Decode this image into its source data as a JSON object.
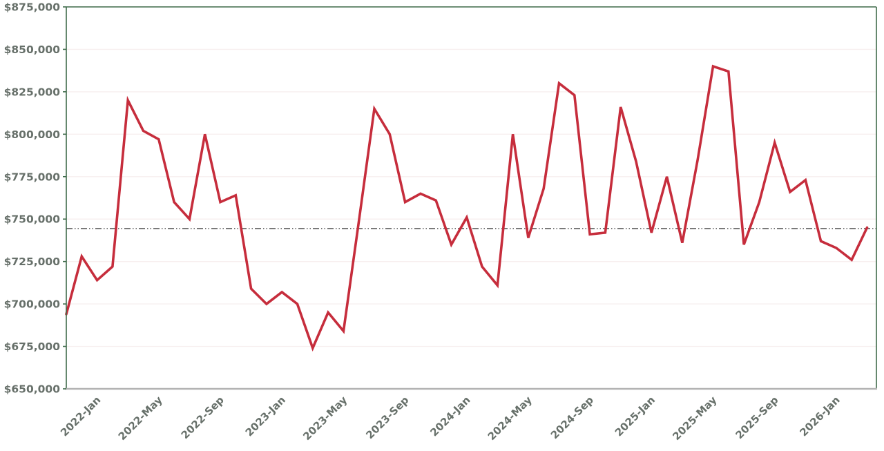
{
  "chart_data": {
    "type": "line",
    "title": "",
    "xlabel": "",
    "ylabel": "",
    "grid": "horizontal",
    "legend_position": "none",
    "x": [
      "2021-Nov",
      "2021-Dec",
      "2022-Jan",
      "2022-Feb",
      "2022-Mar",
      "2022-Apr",
      "2022-May",
      "2022-Jun",
      "2022-Jul",
      "2022-Aug",
      "2022-Sep",
      "2022-Oct",
      "2022-Nov",
      "2022-Dec",
      "2023-Jan",
      "2023-Feb",
      "2023-Mar",
      "2023-Apr",
      "2023-May",
      "2023-Jun",
      "2023-Jul",
      "2023-Aug",
      "2023-Sep",
      "2023-Oct",
      "2023-Nov",
      "2023-Dec",
      "2024-Jan",
      "2024-Feb",
      "2024-Mar",
      "2024-Apr",
      "2024-May",
      "2024-Jun",
      "2024-Jul",
      "2024-Aug",
      "2024-Sep",
      "2024-Oct",
      "2024-Nov",
      "2024-Dec",
      "2025-Jan",
      "2025-Feb",
      "2025-Mar",
      "2025-Apr",
      "2025-May",
      "2025-Jun",
      "2025-Jul",
      "2025-Aug",
      "2025-Sep",
      "2025-Oct",
      "2025-Nov",
      "2025-Dec",
      "2026-Jan",
      "2026-Feb",
      "2026-Mar"
    ],
    "series": [
      {
        "name": "monthly-price",
        "color": "#c62d3c",
        "values": [
          694000,
          728000,
          714000,
          722000,
          820000,
          802000,
          797000,
          760000,
          750000,
          800000,
          760000,
          764000,
          709000,
          700000,
          707000,
          700000,
          674000,
          695000,
          684000,
          749000,
          815000,
          800000,
          760000,
          765000,
          761000,
          735000,
          751000,
          722000,
          711000,
          800000,
          739000,
          768000,
          830000,
          823000,
          741000,
          742000,
          816000,
          784000,
          742000,
          775000,
          736000,
          785000,
          840000,
          837000,
          735000,
          760000,
          795000,
          766000,
          773000,
          737000,
          733000,
          726000,
          745000
        ]
      }
    ],
    "x_tick_labels": [
      "2022-Jan",
      "2022-May",
      "2022-Sep",
      "2023-Jan",
      "2023-May",
      "2023-Sep",
      "2024-Jan",
      "2024-May",
      "2024-Sep",
      "2025-Jan",
      "2025-May",
      "2025-Sep",
      "2026-Jan"
    ],
    "y_ticks": [
      {
        "value": 650000,
        "label": "$650,000"
      },
      {
        "value": 675000,
        "label": "$675,000"
      },
      {
        "value": 700000,
        "label": "$700,000"
      },
      {
        "value": 725000,
        "label": "$725,000"
      },
      {
        "value": 750000,
        "label": "$750,000"
      },
      {
        "value": 775000,
        "label": "$775,000"
      },
      {
        "value": 800000,
        "label": "$800,000"
      },
      {
        "value": 825000,
        "label": "$825,000"
      },
      {
        "value": 850000,
        "label": "$850,000"
      },
      {
        "value": 875000,
        "label": "$875,000"
      }
    ],
    "ylim": [
      650000,
      875000
    ],
    "reference_line": {
      "value": 744400,
      "style": "dash-dot-dot",
      "color": "#1a1a1a"
    },
    "colors": {
      "series_line": "#c62d3c",
      "plot_border": "#3e6b4a",
      "bottom_axis": "#b3b3b3",
      "gridline": "#f7efef",
      "tick_text": "#67706a",
      "reference_line": "#1a1a1a",
      "background": "#ffffff"
    }
  }
}
